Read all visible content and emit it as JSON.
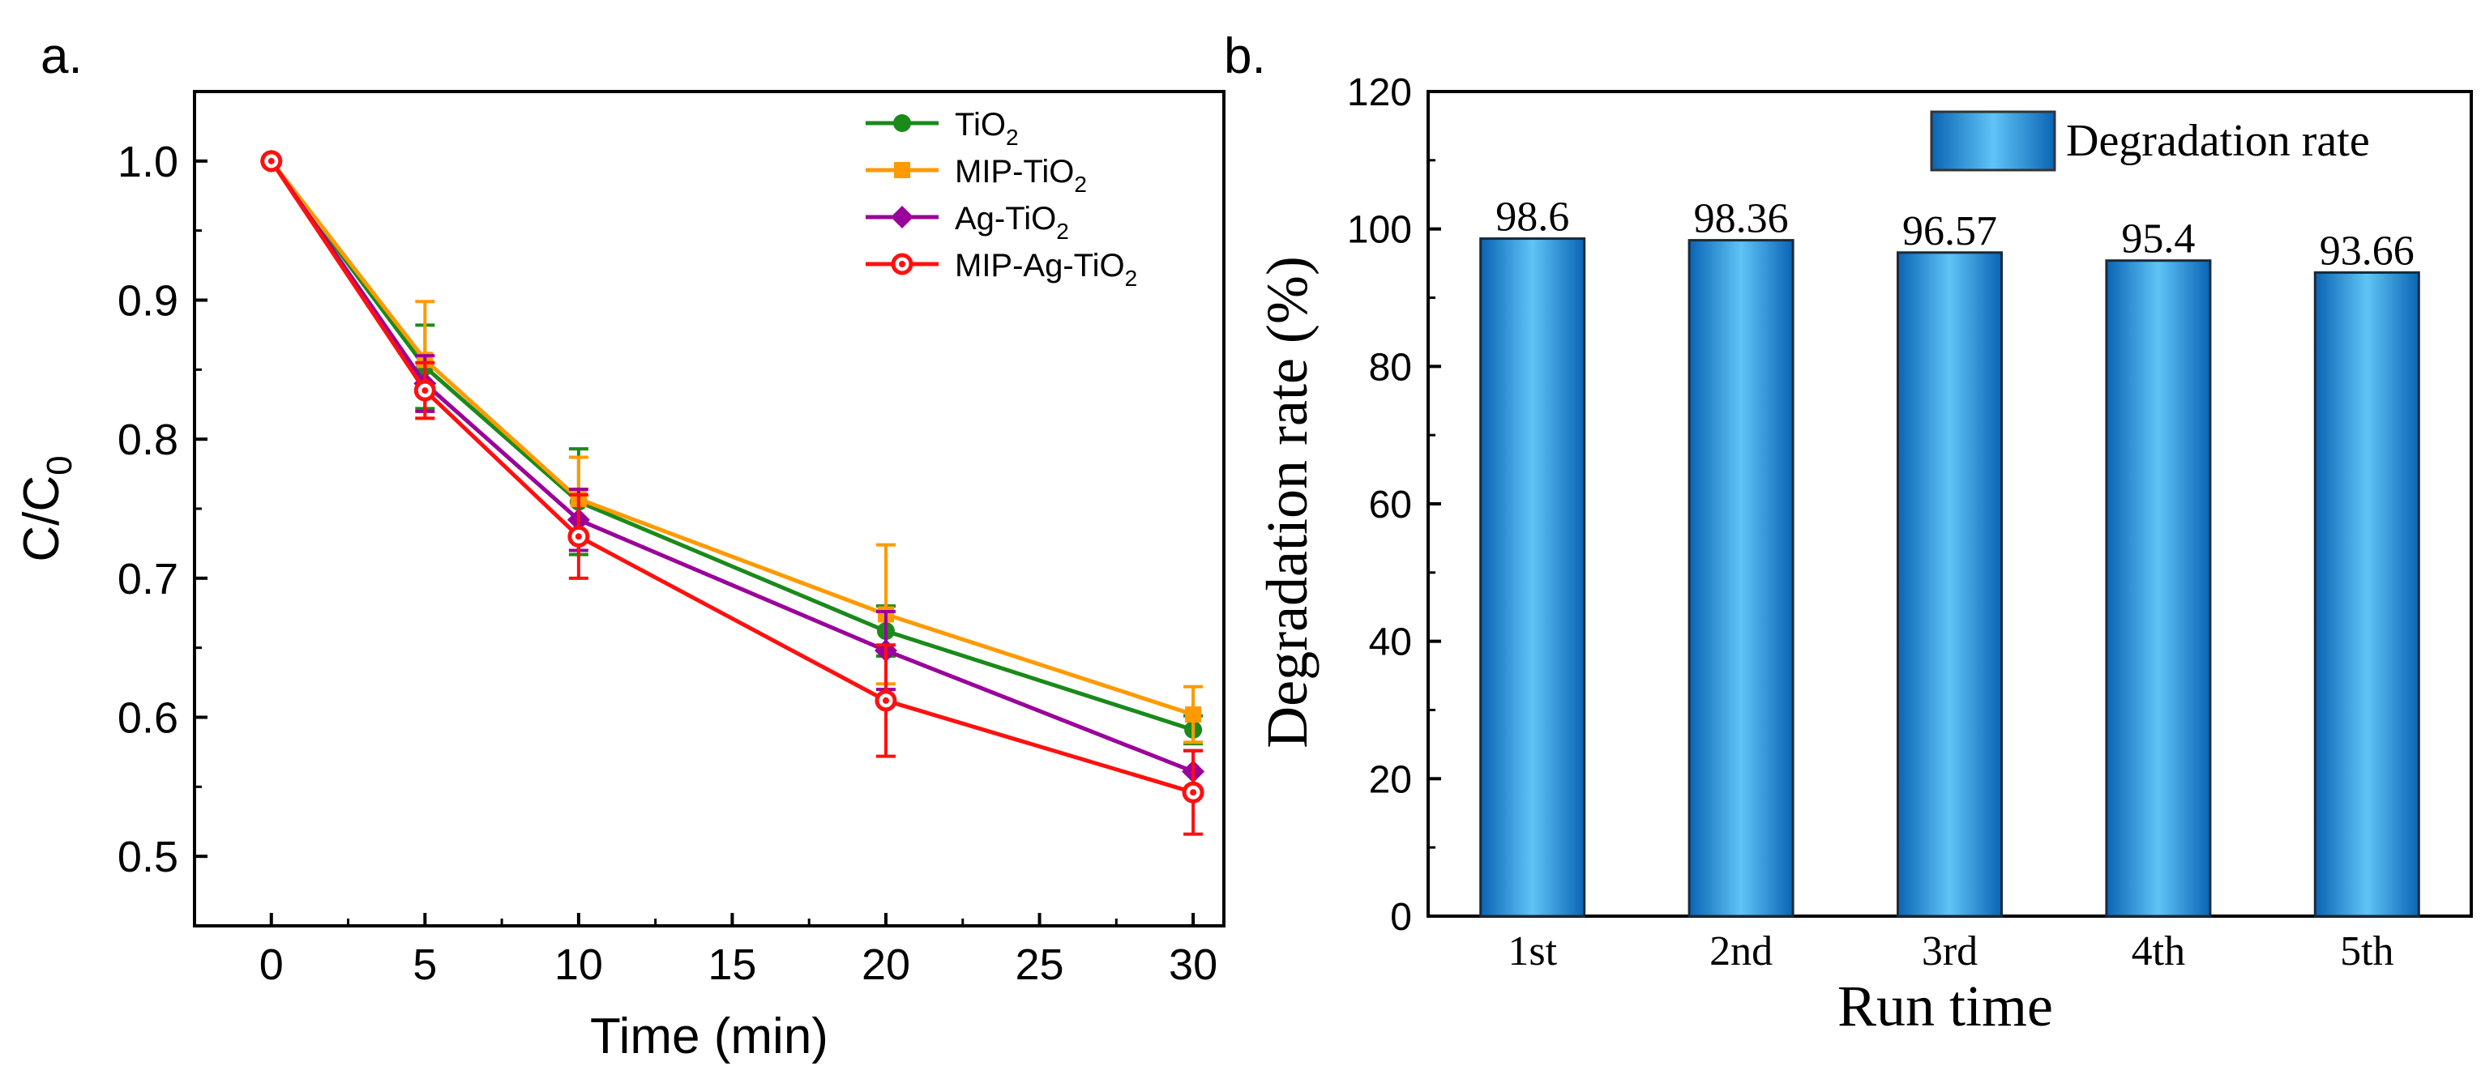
{
  "colors": {
    "tio2": "#1a8a1a",
    "mip_tio2": "#ff9a00",
    "ag_tio2": "#9a009a",
    "mip_ag_tio2": "#ff1010",
    "bar_light": "#5fc4f7",
    "bar_dark": "#0a64b4",
    "axis": "#000000"
  },
  "chart_data": [
    {
      "panel_label": "a.",
      "type": "line",
      "title": "",
      "xlabel": "Time (min)",
      "ylabel": {
        "main": "C/C",
        "sub": "0"
      },
      "xlim": [
        -2.5,
        31
      ],
      "ylim": [
        0.45,
        1.05
      ],
      "xticks": [
        "0",
        "5",
        "10",
        "15",
        "20",
        "25",
        "30"
      ],
      "yticks": [
        "0.5",
        "0.6",
        "0.7",
        "0.8",
        "0.9",
        "1.0"
      ],
      "x": [
        0,
        5,
        10,
        20,
        30
      ],
      "legend_position": "top-right",
      "series": [
        {
          "key": "tio2",
          "name": "TiO",
          "sub": "2",
          "marker": "circle",
          "color_key": "tio2",
          "values": [
            1.0,
            0.852,
            0.755,
            0.662,
            0.591
          ],
          "errors": [
            0.0,
            0.03,
            0.038,
            0.018,
            0.01
          ]
        },
        {
          "key": "mip_tio2",
          "name": "MIP-TiO",
          "sub": "2",
          "marker": "square",
          "color_key": "mip_tio2",
          "values": [
            1.0,
            0.857,
            0.757,
            0.674,
            0.602
          ],
          "errors": [
            0.0,
            0.042,
            0.03,
            0.05,
            0.02
          ]
        },
        {
          "key": "ag_tio2",
          "name": "Ag-TiO",
          "sub": "2",
          "marker": "diamond",
          "color_key": "ag_tio2",
          "values": [
            1.0,
            0.84,
            0.742,
            0.648,
            0.561
          ],
          "errors": [
            0.0,
            0.02,
            0.022,
            0.028,
            0.015
          ]
        },
        {
          "key": "mip_ag_tio2",
          "name": "MIP-Ag-TiO",
          "sub": "2",
          "marker": "circle-half",
          "color_key": "mip_ag_tio2",
          "values": [
            1.0,
            0.835,
            0.73,
            0.612,
            0.546
          ],
          "errors": [
            0.0,
            0.02,
            0.03,
            0.04,
            0.03
          ]
        }
      ]
    },
    {
      "panel_label": "b.",
      "type": "bar",
      "title": "",
      "xlabel": "Run time",
      "ylabel": "Degradation rate (%)",
      "ylim": [
        0,
        120
      ],
      "yticks": [
        "0",
        "20",
        "40",
        "60",
        "80",
        "100",
        "120"
      ],
      "categories": [
        "1st",
        "2nd",
        "3rd",
        "4th",
        "5th"
      ],
      "values": [
        98.6,
        98.36,
        96.57,
        95.4,
        93.66
      ],
      "value_labels": [
        "98.6",
        "98.36",
        "96.57",
        "95.4",
        "93.66"
      ],
      "legend_position": "top-right",
      "series_name": "Degradation rate"
    }
  ]
}
